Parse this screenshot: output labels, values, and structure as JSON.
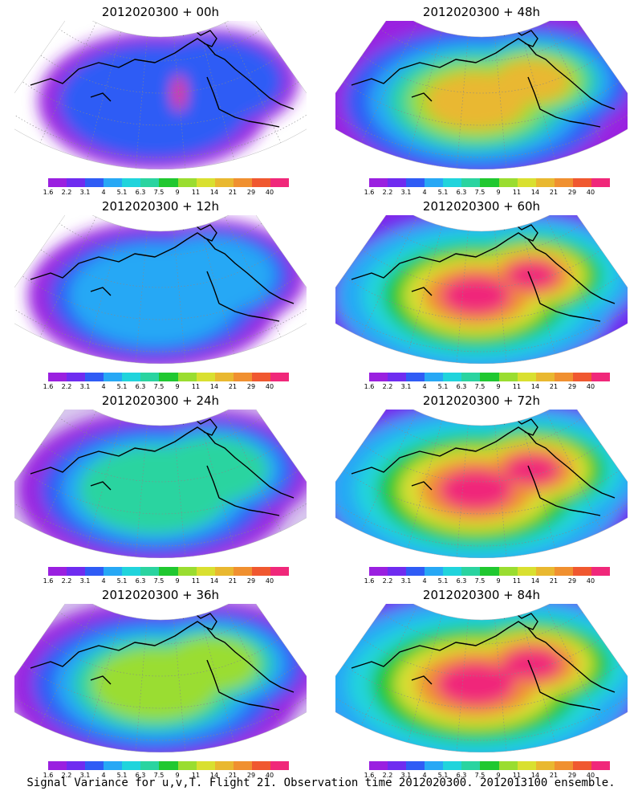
{
  "panels": [
    {
      "title": "2012020300 + 00h",
      "level": 0
    },
    {
      "title": "2012020300 + 48h",
      "level": 4
    },
    {
      "title": "2012020300 + 12h",
      "level": 1
    },
    {
      "title": "2012020300 + 60h",
      "level": 5
    },
    {
      "title": "2012020300 + 24h",
      "level": 2
    },
    {
      "title": "2012020300 + 72h",
      "level": 6
    },
    {
      "title": "2012020300 + 36h",
      "level": 3
    },
    {
      "title": "2012020300 + 84h",
      "level": 7
    }
  ],
  "colorbar": {
    "colors": [
      "#9a20e0",
      "#6f2cf0",
      "#2f5cf5",
      "#27a8f5",
      "#20d4dc",
      "#2ad4a0",
      "#20c830",
      "#9add30",
      "#d9e030",
      "#e9b830",
      "#f09030",
      "#f05830",
      "#f0287a"
    ],
    "labels": [
      "1.6",
      "2.2",
      "3.1",
      "4",
      "5.1",
      "6.3",
      "7.5",
      "9",
      "11",
      "14",
      "21",
      "29",
      "40"
    ]
  },
  "caption": "Signal Variance for u,v,T. Flight 21. Observation time 2012020300. 2012013100 ensemble."
}
